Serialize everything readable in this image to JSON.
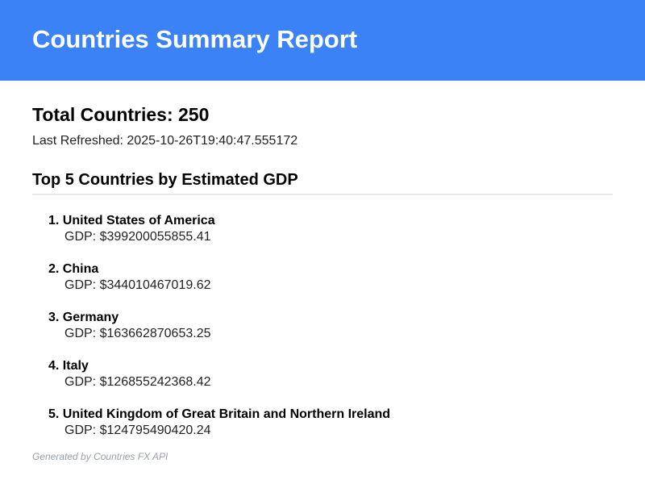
{
  "header": {
    "title": "Countries Summary Report",
    "background_color": "#3b82f6"
  },
  "summary": {
    "total_label": "Total Countries: 250",
    "last_refreshed": "Last Refreshed: 2025-10-26T19:40:47.555172"
  },
  "top_section": {
    "title": "Top 5 Countries by Estimated GDP",
    "items": [
      {
        "rank": "1.",
        "name": "United States of America",
        "gdp": "GDP: $399200055855.41"
      },
      {
        "rank": "2.",
        "name": "China",
        "gdp": "GDP: $344010467019.62"
      },
      {
        "rank": "3.",
        "name": "Germany",
        "gdp": "GDP: $163662870653.25"
      },
      {
        "rank": "4.",
        "name": "Italy",
        "gdp": "GDP: $126855242368.42"
      },
      {
        "rank": "5.",
        "name": "United Kingdom of Great Britain and Northern Ireland",
        "gdp": "GDP: $124795490420.24"
      }
    ]
  },
  "footer": {
    "text": "Generated by Countries FX API"
  }
}
